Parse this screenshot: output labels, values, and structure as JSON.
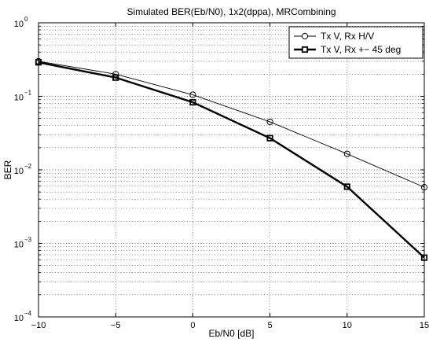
{
  "chart_data": {
    "type": "line",
    "title": "Simulated BER(Eb/N0), 1x2(dppa), MRCombining",
    "xlabel": "Eb/N0 [dB]",
    "ylabel": "BER",
    "xlim": [
      -10,
      15
    ],
    "ylim": [
      0.0001,
      1
    ],
    "yscale": "log",
    "grid": true,
    "legend_position": "top-right",
    "x_ticks": [
      -10,
      -5,
      0,
      5,
      10,
      15
    ],
    "x_tick_labels": [
      "-10",
      "-5",
      "0",
      "5",
      "10",
      "15"
    ],
    "y_tick_exponents": [
      -4,
      -3,
      -2,
      -1,
      0
    ],
    "y_tick_base": "10",
    "y_tick_labels": [
      "-4",
      "-3",
      "-2",
      "-1",
      "0"
    ],
    "x": [
      -10,
      -5,
      0,
      5,
      10,
      15
    ],
    "series": [
      {
        "name": "Tx V, Rx H/V",
        "values": [
          0.3,
          0.2,
          0.105,
          0.045,
          0.0165,
          0.0058
        ],
        "marker": "circle",
        "line_weight": "thin",
        "color": "#000000"
      },
      {
        "name": "Tx V, Rx +− 45 deg",
        "values": [
          0.29,
          0.18,
          0.083,
          0.027,
          0.0059,
          0.00064
        ],
        "marker": "square",
        "line_weight": "thick",
        "color": "#000000"
      }
    ]
  }
}
